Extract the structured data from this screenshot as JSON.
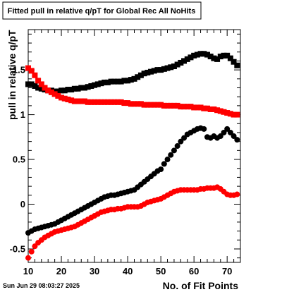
{
  "timestamp": "Sun Jun 29 08:03:27 2025",
  "chart_data": {
    "type": "scatter",
    "title": "Fitted pull in relative q/pT for Global Rec All NoHits",
    "xlabel": "No. of Fit Points",
    "ylabel": "pull in relative q/pT",
    "xlim": [
      10,
      74
    ],
    "ylim": [
      -0.65,
      1.95
    ],
    "x_ticks": [
      10,
      20,
      30,
      40,
      50,
      60,
      70
    ],
    "y_ticks": [
      -0.5,
      0,
      0.5,
      1,
      1.5
    ],
    "y_tick_labels": [
      "-0.5",
      "0",
      "0.5",
      "1",
      "1.5"
    ],
    "grid": false,
    "legend": "none",
    "series": [
      {
        "color": "#000000",
        "marker": "square",
        "x": [
          10,
          11,
          12,
          13,
          14,
          15,
          16,
          17,
          18,
          19,
          20,
          21,
          22,
          23,
          24,
          25,
          26,
          27,
          28,
          29,
          30,
          31,
          32,
          33,
          34,
          35,
          36,
          37,
          38,
          39,
          40,
          41,
          42,
          43,
          44,
          45,
          46,
          47,
          48,
          49,
          50,
          51,
          52,
          53,
          54,
          55,
          56,
          57,
          58,
          59,
          60,
          61,
          62,
          63,
          64,
          65,
          66,
          67,
          68,
          69,
          70,
          71,
          72,
          73
        ],
        "values": [
          1.34,
          1.34,
          1.32,
          1.3,
          1.29,
          1.28,
          1.27,
          1.27,
          1.26,
          1.26,
          1.27,
          1.27,
          1.28,
          1.28,
          1.29,
          1.29,
          1.3,
          1.3,
          1.31,
          1.32,
          1.33,
          1.34,
          1.35,
          1.36,
          1.36,
          1.37,
          1.37,
          1.37,
          1.37,
          1.38,
          1.38,
          1.39,
          1.4,
          1.42,
          1.44,
          1.46,
          1.47,
          1.48,
          1.49,
          1.5,
          1.5,
          1.51,
          1.52,
          1.53,
          1.54,
          1.56,
          1.58,
          1.6,
          1.62,
          1.64,
          1.66,
          1.67,
          1.68,
          1.68,
          1.67,
          1.65,
          1.63,
          1.62,
          1.65,
          1.66,
          1.66,
          1.63,
          1.59,
          1.55
        ]
      },
      {
        "color": "#ff0000",
        "marker": "square",
        "x": [
          10,
          11,
          12,
          13,
          14,
          15,
          16,
          17,
          18,
          19,
          20,
          21,
          22,
          23,
          24,
          25,
          26,
          27,
          28,
          29,
          30,
          31,
          32,
          33,
          34,
          35,
          36,
          37,
          38,
          39,
          40,
          41,
          42,
          43,
          44,
          45,
          46,
          47,
          48,
          49,
          50,
          51,
          52,
          53,
          54,
          55,
          56,
          57,
          58,
          59,
          60,
          61,
          62,
          63,
          64,
          65,
          66,
          67,
          68,
          69,
          70,
          71,
          72,
          73
        ],
        "values": [
          1.52,
          1.49,
          1.44,
          1.38,
          1.34,
          1.3,
          1.27,
          1.25,
          1.23,
          1.21,
          1.19,
          1.18,
          1.17,
          1.16,
          1.15,
          1.15,
          1.15,
          1.15,
          1.14,
          1.14,
          1.14,
          1.14,
          1.14,
          1.14,
          1.14,
          1.14,
          1.14,
          1.14,
          1.14,
          1.13,
          1.13,
          1.12,
          1.12,
          1.12,
          1.12,
          1.11,
          1.11,
          1.11,
          1.11,
          1.11,
          1.11,
          1.1,
          1.1,
          1.1,
          1.1,
          1.1,
          1.09,
          1.09,
          1.09,
          1.09,
          1.08,
          1.08,
          1.08,
          1.07,
          1.07,
          1.06,
          1.06,
          1.05,
          1.04,
          1.03,
          1.02,
          1.01,
          1.0,
          1.0
        ]
      },
      {
        "color": "#000000",
        "marker": "circle",
        "x": [
          10,
          11,
          12,
          13,
          14,
          15,
          16,
          17,
          18,
          19,
          20,
          21,
          22,
          23,
          24,
          25,
          26,
          27,
          28,
          29,
          30,
          31,
          32,
          33,
          34,
          35,
          36,
          37,
          38,
          39,
          40,
          41,
          42,
          43,
          44,
          45,
          46,
          47,
          48,
          49,
          50,
          51,
          52,
          53,
          54,
          55,
          56,
          57,
          58,
          59,
          60,
          61,
          62,
          63,
          64,
          65,
          66,
          67,
          68,
          69,
          70,
          71,
          72,
          73
        ],
        "values": [
          -0.32,
          -0.3,
          -0.28,
          -0.27,
          -0.26,
          -0.25,
          -0.24,
          -0.23,
          -0.22,
          -0.2,
          -0.18,
          -0.16,
          -0.14,
          -0.12,
          -0.1,
          -0.08,
          -0.06,
          -0.04,
          -0.02,
          0,
          0.02,
          0.04,
          0.06,
          0.08,
          0.09,
          0.1,
          0.1,
          0.11,
          0.12,
          0.13,
          0.14,
          0.15,
          0.16,
          0.19,
          0.22,
          0.25,
          0.28,
          0.31,
          0.34,
          0.37,
          0.39,
          0.45,
          0.5,
          0.55,
          0.6,
          0.65,
          0.7,
          0.74,
          0.78,
          0.8,
          0.82,
          0.84,
          0.85,
          0.84,
          0.75,
          0.74,
          0.76,
          0.74,
          0.76,
          0.8,
          0.84,
          0.8,
          0.76,
          0.72
        ]
      },
      {
        "color": "#ff0000",
        "marker": "circle",
        "x": [
          10,
          11,
          12,
          13,
          14,
          15,
          16,
          17,
          18,
          19,
          20,
          21,
          22,
          23,
          24,
          25,
          26,
          27,
          28,
          29,
          30,
          31,
          32,
          33,
          34,
          35,
          36,
          37,
          38,
          39,
          40,
          41,
          42,
          43,
          44,
          45,
          46,
          47,
          48,
          49,
          50,
          51,
          52,
          53,
          54,
          55,
          56,
          57,
          58,
          59,
          60,
          61,
          62,
          63,
          64,
          65,
          66,
          67,
          68,
          69,
          70,
          71,
          72,
          73
        ],
        "values": [
          -0.6,
          -0.53,
          -0.47,
          -0.43,
          -0.4,
          -0.37,
          -0.35,
          -0.33,
          -0.31,
          -0.3,
          -0.29,
          -0.28,
          -0.27,
          -0.26,
          -0.25,
          -0.23,
          -0.21,
          -0.19,
          -0.17,
          -0.15,
          -0.13,
          -0.11,
          -0.09,
          -0.08,
          -0.07,
          -0.06,
          -0.06,
          -0.05,
          -0.05,
          -0.04,
          -0.03,
          -0.03,
          -0.03,
          -0.03,
          -0.02,
          0,
          0.02,
          0.03,
          0.04,
          0.05,
          0.06,
          0.08,
          0.1,
          0.12,
          0.14,
          0.15,
          0.16,
          0.16,
          0.16,
          0.16,
          0.16,
          0.16,
          0.17,
          0.17,
          0.18,
          0.18,
          0.18,
          0.19,
          0.17,
          0.14,
          0.11,
          0.1,
          0.1,
          0.11
        ]
      }
    ]
  }
}
